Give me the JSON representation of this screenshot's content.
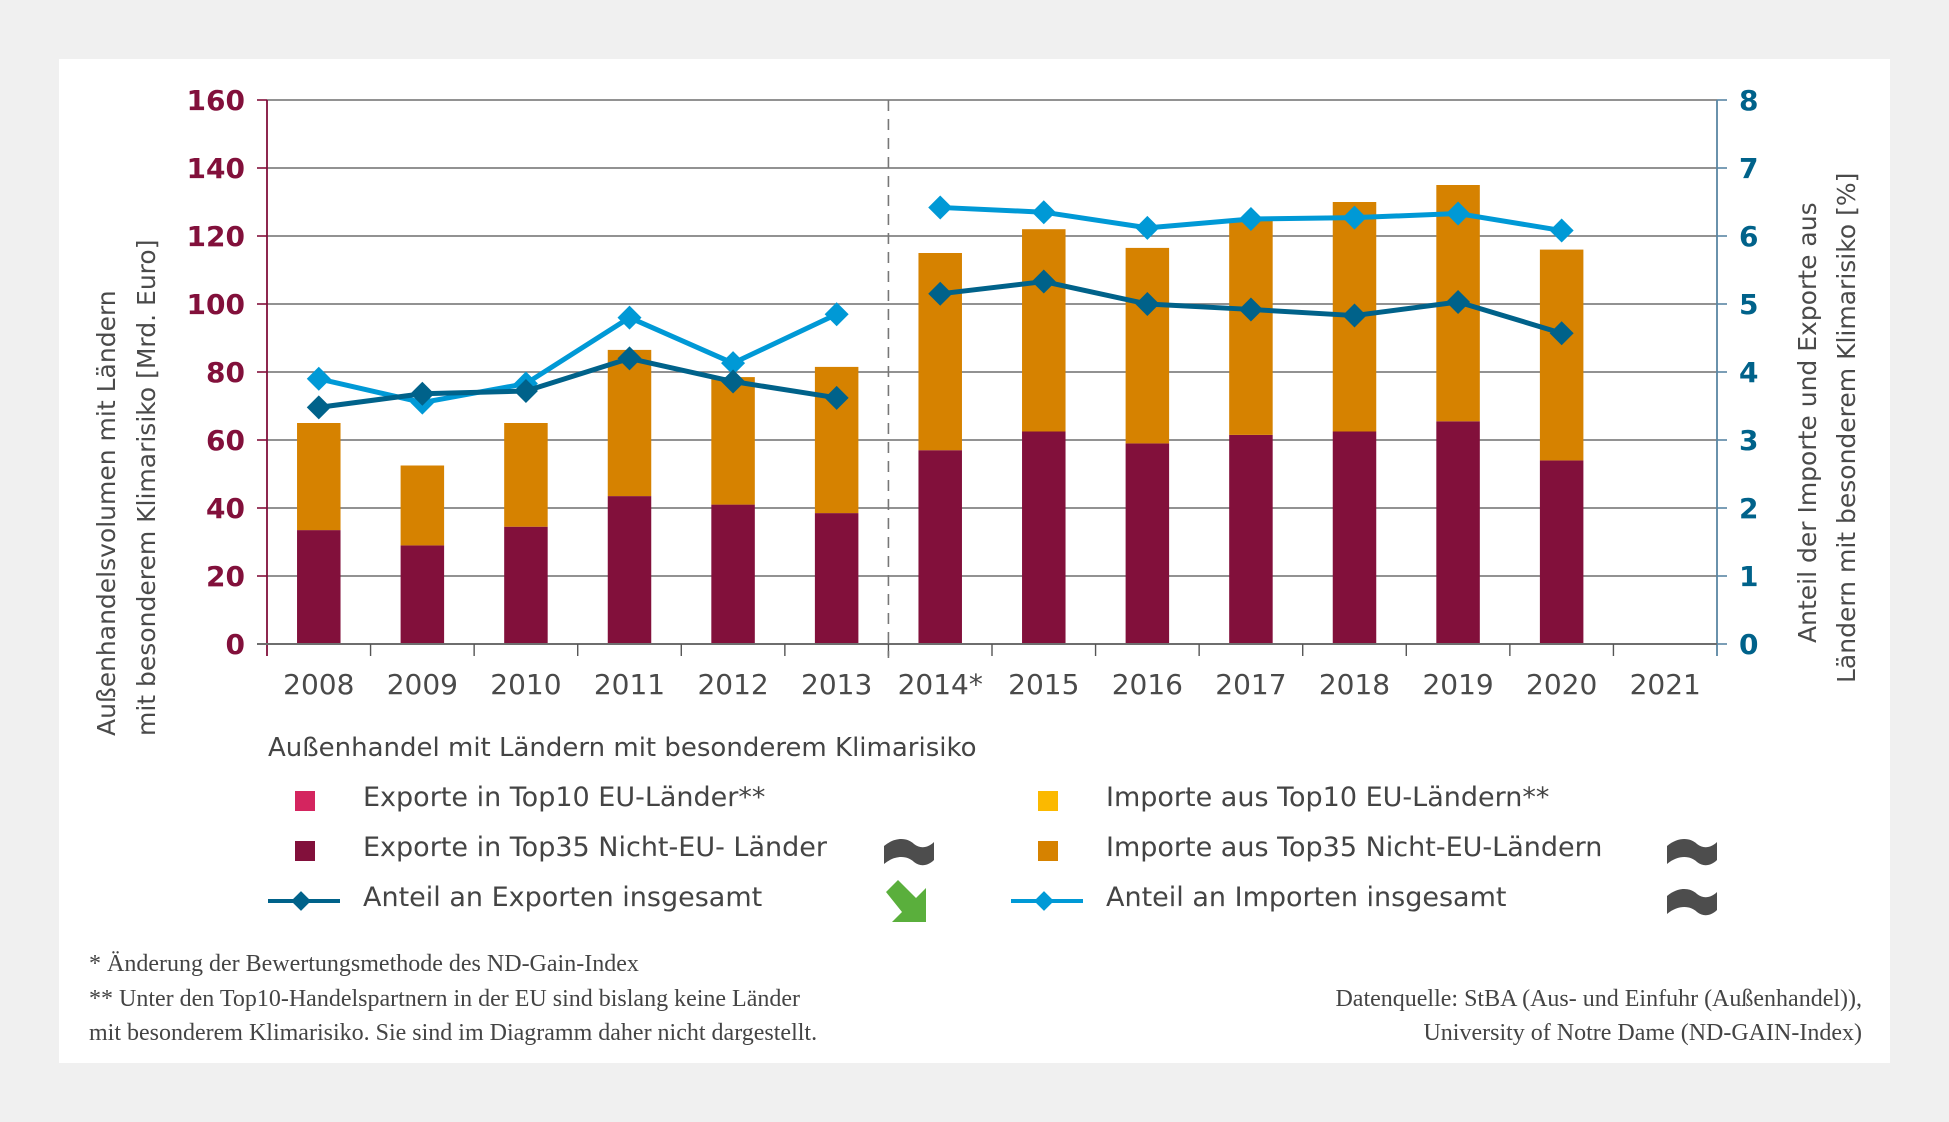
{
  "chart_data": {
    "type": "bar",
    "stacked": true,
    "categories": [
      "2008",
      "2009",
      "2010",
      "2011",
      "2012",
      "2013",
      "2014*",
      "2015",
      "2016",
      "2017",
      "2018",
      "2019",
      "2020",
      "2021"
    ],
    "y_left": {
      "label_lines": [
        "Außenhandelsvolumen mit Ländern",
        "mit besonderem Klimarisiko [Mrd. Euro]"
      ],
      "ticks": [
        0,
        20,
        40,
        60,
        80,
        100,
        120,
        140,
        160
      ],
      "ylim": [
        0,
        160
      ],
      "color": "#82103b"
    },
    "y_right": {
      "label_lines": [
        "Anteil der Importe und Exporte aus",
        "Ländern mit besonderem Klimarisiko [%]"
      ],
      "ticks": [
        0,
        1,
        2,
        3,
        4,
        5,
        6,
        7,
        8
      ],
      "ylim": [
        0,
        8
      ],
      "color": "#00628a"
    },
    "series": [
      {
        "name": "Exporte in Top10 EU-Länder**",
        "type": "bar",
        "color": "#d4255f",
        "values": [
          null,
          null,
          null,
          null,
          null,
          null,
          null,
          null,
          null,
          null,
          null,
          null,
          null,
          null
        ]
      },
      {
        "name": "Exporte in Top35 Nicht-EU- Länder",
        "type": "bar",
        "color": "#82103b",
        "values": [
          33.5,
          29.0,
          34.5,
          43.5,
          41.0,
          38.5,
          57.0,
          62.5,
          59.0,
          61.5,
          62.5,
          65.5,
          54.0,
          null
        ]
      },
      {
        "name": "Importe aus Top10 EU-Ländern**",
        "type": "bar",
        "color": "#fbb900",
        "values": [
          null,
          null,
          null,
          null,
          null,
          null,
          null,
          null,
          null,
          null,
          null,
          null,
          null,
          null
        ]
      },
      {
        "name": "Importe aus Top35 Nicht-EU-Ländern",
        "type": "bar",
        "color": "#d68200",
        "values": [
          31.5,
          23.5,
          30.5,
          43.0,
          37.5,
          43.0,
          58.0,
          59.5,
          57.5,
          63.5,
          67.5,
          69.5,
          62.0,
          null
        ]
      },
      {
        "name": "Anteil an Exporten insgesamt",
        "type": "line",
        "axis": "right",
        "color": "#00628a",
        "values": [
          3.48,
          3.68,
          3.72,
          4.2,
          3.86,
          3.62,
          5.15,
          5.33,
          5.0,
          4.92,
          4.83,
          5.03,
          4.57,
          null
        ]
      },
      {
        "name": "Anteil an Importen insgesamt",
        "type": "line",
        "axis": "right",
        "color": "#0099d6",
        "values": [
          3.9,
          3.55,
          3.83,
          4.8,
          4.13,
          4.85,
          6.42,
          6.35,
          6.12,
          6.25,
          6.27,
          6.33,
          6.08,
          null
        ]
      }
    ],
    "annotations": [
      "vertical dashed line between 2013 and 2014*"
    ],
    "grid": true,
    "legend_position": "bottom"
  },
  "legend": {
    "title": "Außenhandel mit Ländern mit besonderem Klimarisiko",
    "items": [
      {
        "label": "Exporte in Top10 EU-Länder**",
        "kind": "square",
        "color": "#d4255f",
        "trend": null
      },
      {
        "label": "Importe aus Top10 EU-Ländern**",
        "kind": "square",
        "color": "#fbb900",
        "trend": null
      },
      {
        "label": "Exporte in Top35 Nicht-EU- Länder",
        "kind": "square",
        "color": "#82103b",
        "trend": "tilde-icon"
      },
      {
        "label": "Importe aus Top35 Nicht-EU-Ländern",
        "kind": "square",
        "color": "#d68200",
        "trend": "tilde-icon"
      },
      {
        "label": "Anteil an Exporten insgesamt",
        "kind": "line",
        "color": "#00628a",
        "trend": "arrow-down-right-icon"
      },
      {
        "label": "Anteil an Importen insgesamt",
        "kind": "line",
        "color": "#0099d6",
        "trend": "tilde-icon"
      }
    ]
  },
  "colors": {
    "trend_neutral": "#4d4d4d",
    "trend_good": "#5aaf3c",
    "axis_text": "#4a4a4a"
  },
  "footnotes": {
    "note1": "* Änderung der Bewertungsmethode des ND-Gain-Index",
    "note2a": "** Unter den Top10-Handelspartnern in der EU sind bislang keine Länder",
    "note2b": "mit besonderem Klimarisiko. Sie sind im Diagramm daher nicht dargestellt."
  },
  "source": {
    "line1": "Datenquelle: StBA (Aus- und Einfuhr (Außenhandel)),",
    "line2": "University of Notre Dame (ND-GAIN-Index)"
  }
}
